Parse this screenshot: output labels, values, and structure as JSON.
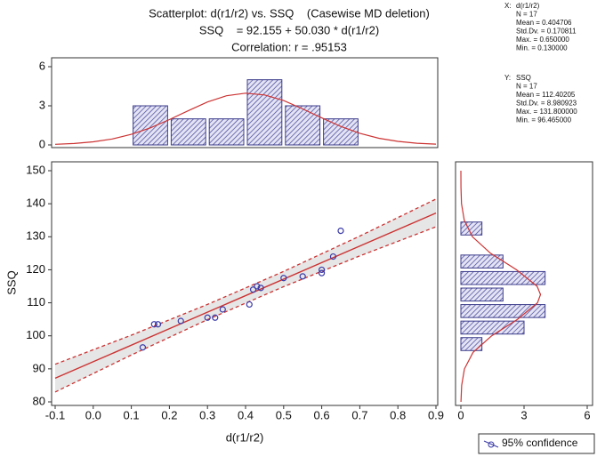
{
  "annotations": {
    "x_head": "X:",
    "x_lines": [
      "d(r1/r2)",
      "N = 17",
      "Mean = 0.404706",
      "Std.Dv. = 0.170811",
      "Max. = 0.650000",
      "Min. = 0.130000"
    ],
    "y_head": "Y:",
    "y_lines": [
      "SSQ",
      "N = 17",
      "Mean = 112.40205",
      "Std.Dv. = 8.980923",
      "Max. = 131.800000",
      "Min. = 96.465000"
    ]
  },
  "chart_data": [
    {
      "type": "scatter",
      "title": "Scatterplot: d(r1/r2) vs. SSQ    (Casewise MD deletion)",
      "subtitle": "SSQ    = 92.155 + 50.030 * d(r1/r2)",
      "annotation": "Correlation: r = .95153",
      "xlabel": "d(r1/r2)",
      "ylabel": "SSQ",
      "x": [
        0.13,
        0.16,
        0.17,
        0.23,
        0.3,
        0.32,
        0.34,
        0.41,
        0.42,
        0.43,
        0.44,
        0.5,
        0.55,
        0.6,
        0.6,
        0.63,
        0.65
      ],
      "y": [
        96.5,
        103.5,
        103.5,
        104.5,
        105.5,
        105.5,
        108,
        109.5,
        114,
        115,
        114.5,
        117.5,
        118,
        120,
        119,
        124,
        131.8
      ],
      "color": "#3a3aa8",
      "fit": {
        "x": [
          -0.1,
          0.9
        ],
        "y": [
          87.152,
          137.182
        ],
        "color": "#cc3333"
      },
      "band": {
        "x": [
          -0.1,
          0.1,
          0.3,
          0.5,
          0.7,
          0.9
        ],
        "lower": [
          83.0,
          94.2,
          104.9,
          114.9,
          124.2,
          133.0
        ],
        "upper": [
          91.4,
          100.2,
          109.5,
          119.5,
          130.2,
          141.4
        ]
      },
      "legend": "95% confidence",
      "xlim": [
        -0.1,
        0.9
      ],
      "xticks": [
        -0.1,
        {
          "value": 0,
          "label": "0.0"
        },
        0.1,
        0.2,
        0.3,
        0.4,
        0.5,
        0.6,
        0.7,
        0.8,
        0.9
      ],
      "ylim": [
        80,
        150
      ],
      "yticks": [
        80,
        90,
        100,
        110,
        120,
        130,
        140,
        150
      ]
    },
    {
      "type": "histogram",
      "orientation": "vertical",
      "bins": [
        0.1,
        0.2,
        0.3,
        0.4,
        0.5,
        0.6,
        0.7
      ],
      "values": [
        3,
        2,
        2,
        5,
        3,
        2
      ],
      "curve": {
        "positions": [
          -0.1,
          -0.05,
          0,
          0.05,
          0.1,
          0.15,
          0.2,
          0.25,
          0.3,
          0.35,
          0.4,
          0.45,
          0.5,
          0.55,
          0.6,
          0.65,
          0.7,
          0.75,
          0.8,
          0.85,
          0.9
        ],
        "values": [
          0.05,
          0.11,
          0.24,
          0.46,
          0.81,
          1.31,
          1.94,
          2.63,
          3.29,
          3.77,
          3.97,
          3.83,
          3.4,
          2.76,
          2.07,
          1.42,
          0.89,
          0.51,
          0.27,
          0.13,
          0.06
        ]
      },
      "xlim": [
        -0.1,
        0.9
      ],
      "ylim": [
        0,
        6
      ],
      "yticks": [
        0,
        3,
        6
      ]
    },
    {
      "type": "histogram",
      "orientation": "horizontal",
      "bins": [
        95,
        100,
        105,
        110,
        115,
        120,
        125,
        130,
        135
      ],
      "values": [
        1,
        3,
        4,
        2,
        4,
        2,
        0,
        1
      ],
      "curve": {
        "positions": [
          80,
          85,
          90,
          95,
          100,
          105,
          110,
          112.5,
          115,
          120,
          125,
          130,
          135,
          140,
          145,
          150
        ],
        "values": [
          0.006,
          0.04,
          0.17,
          0.58,
          1.46,
          2.69,
          3.64,
          3.78,
          3.62,
          2.64,
          1.41,
          0.55,
          0.16,
          0.03,
          0.005,
          0.001
        ]
      },
      "ylim": [
        80,
        150
      ],
      "xlim": [
        0,
        6
      ],
      "xticks": [
        0,
        3,
        6
      ]
    }
  ]
}
